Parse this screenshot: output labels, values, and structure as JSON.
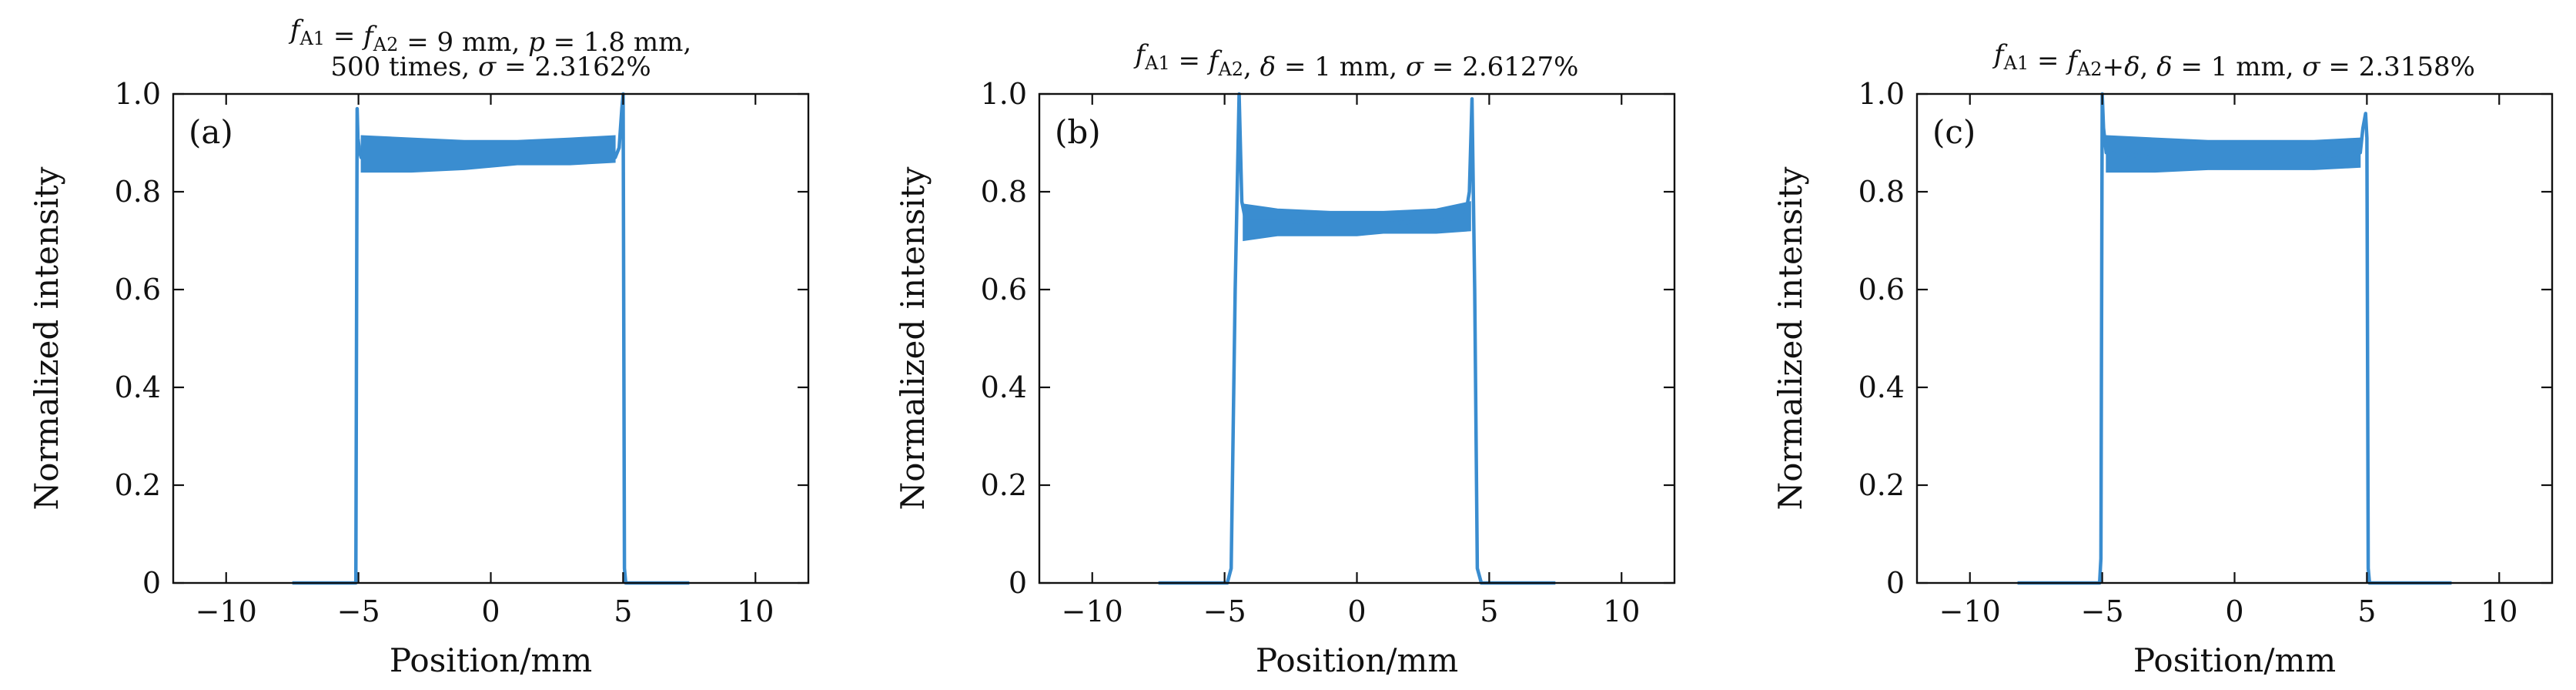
{
  "figure": {
    "trace_color": "#3a8dd0",
    "ylabel": "Normalized intensity",
    "xlabel": "Position/mm",
    "x_ticks": [
      -10,
      -5,
      0,
      5,
      10
    ],
    "x_tick_labels": [
      "−10",
      "−5",
      "0",
      "5",
      "10"
    ],
    "y_ticks": [
      0,
      0.2,
      0.4,
      0.6,
      0.8,
      1.0
    ],
    "y_tick_labels": [
      "0",
      "0.2",
      "0.4",
      "0.6",
      "0.8",
      "1.0"
    ]
  },
  "chart_data": [
    {
      "type": "line",
      "panel_label": "(a)",
      "title_line1": "f_A1 = f_A2 = 9 mm, p = 1.8 mm,",
      "title_line2": "500 times, σ = 2.3162%",
      "xlabel": "Position/mm",
      "ylabel": "Normalized intensity",
      "xlim": [
        -12,
        12
      ],
      "ylim": [
        0,
        1.0
      ],
      "grid": false,
      "series": [
        {
          "x": [
            -7.5,
            -5.1,
            -5.05,
            -5.02,
            -4.95,
            -4.9,
            -3,
            -1,
            0,
            1,
            3,
            4.7,
            4.85,
            4.95,
            5.0,
            5.05,
            5.1,
            7.5
          ],
          "y": [
            0,
            0,
            0.97,
            0.91,
            0.88,
            0.87,
            0.87,
            0.87,
            0.87,
            0.87,
            0.87,
            0.87,
            0.89,
            0.97,
            1.0,
            0.03,
            0,
            0
          ],
          "band_x": [
            -4.9,
            -3,
            -1,
            0,
            1,
            3,
            4.7
          ],
          "band_upper": [
            0.915,
            0.91,
            0.905,
            0.905,
            0.905,
            0.91,
            0.915
          ],
          "band_lower": [
            0.84,
            0.84,
            0.845,
            0.85,
            0.855,
            0.855,
            0.86
          ]
        }
      ]
    },
    {
      "type": "line",
      "panel_label": "(b)",
      "title_line1": "f_A1 = f_A2, δ = 1 mm, σ = 2.6127%",
      "title_line2": "",
      "xlabel": "Position/mm",
      "ylabel": "Normalized intensity",
      "xlim": [
        -12,
        12
      ],
      "ylim": [
        0,
        1.0
      ],
      "grid": false,
      "series": [
        {
          "x": [
            -7.5,
            -4.9,
            -4.75,
            -4.6,
            -4.45,
            -4.35,
            -4.2,
            -3,
            -1,
            0,
            1,
            3,
            4.1,
            4.25,
            4.35,
            4.45,
            4.55,
            4.7,
            7.5
          ],
          "y": [
            0,
            0,
            0.03,
            0.6,
            1.0,
            0.78,
            0.74,
            0.74,
            0.735,
            0.735,
            0.735,
            0.74,
            0.75,
            0.8,
            0.99,
            0.6,
            0.03,
            0,
            0
          ],
          "band_x": [
            -4.3,
            -3,
            -1,
            0,
            1,
            3,
            4.3
          ],
          "band_upper": [
            0.775,
            0.765,
            0.76,
            0.76,
            0.76,
            0.765,
            0.78
          ],
          "band_lower": [
            0.7,
            0.71,
            0.71,
            0.71,
            0.715,
            0.715,
            0.72
          ]
        }
      ]
    },
    {
      "type": "line",
      "panel_label": "(c)",
      "title_line1": "f_A1 = f_A2+δ, δ = 1 mm, σ = 2.3158%",
      "title_line2": "",
      "xlabel": "Position/mm",
      "ylabel": "Normalized intensity",
      "xlim": [
        -12,
        12
      ],
      "ylim": [
        0,
        1.0
      ],
      "grid": false,
      "series": [
        {
          "x": [
            -8.2,
            -5.1,
            -5.05,
            -5.0,
            -4.95,
            -4.85,
            -3,
            -1,
            0,
            1,
            3,
            4.75,
            4.85,
            4.95,
            5.0,
            5.05,
            5.1,
            8.2
          ],
          "y": [
            0,
            0,
            0.05,
            1.0,
            0.93,
            0.88,
            0.87,
            0.87,
            0.87,
            0.87,
            0.87,
            0.88,
            0.93,
            0.96,
            0.91,
            0.03,
            0,
            0
          ],
          "band_x": [
            -4.85,
            -3,
            -1,
            0,
            1,
            3,
            4.75
          ],
          "band_upper": [
            0.915,
            0.91,
            0.905,
            0.905,
            0.905,
            0.905,
            0.91
          ],
          "band_lower": [
            0.84,
            0.84,
            0.845,
            0.845,
            0.845,
            0.845,
            0.85
          ]
        }
      ]
    }
  ]
}
